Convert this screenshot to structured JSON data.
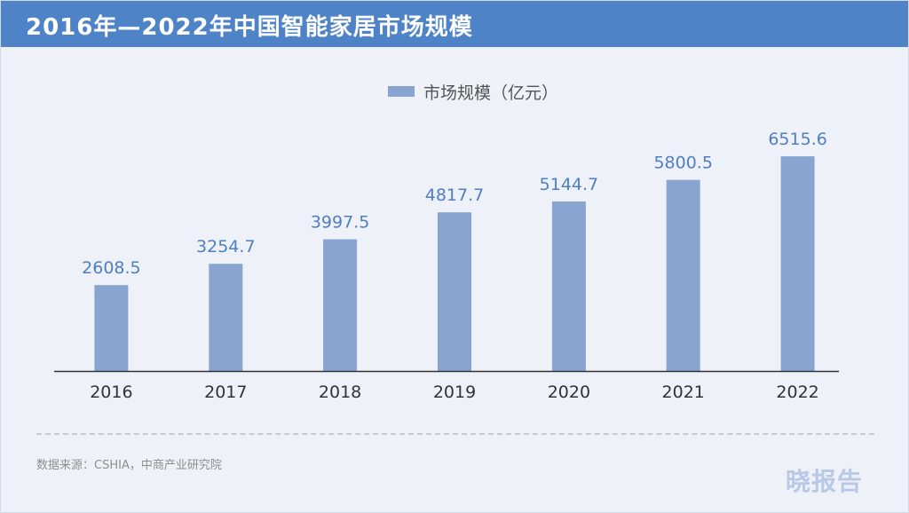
{
  "header": {
    "title": "2016年—2022年中国智能家居市场规模"
  },
  "chart_data": {
    "type": "bar",
    "title": "2016年—2022年中国智能家居市场规模",
    "categories": [
      "2016",
      "2017",
      "2018",
      "2019",
      "2020",
      "2021",
      "2022"
    ],
    "series": [
      {
        "name": "市场规模（亿元）",
        "values": [
          2608.5,
          3254.7,
          3997.5,
          4817.7,
          5144.7,
          5800.5,
          6515.6
        ]
      }
    ],
    "data_labels": [
      "2608.5",
      "3254.7",
      "3997.5",
      "4817.7",
      "5144.7",
      "5800.5",
      "6515.6"
    ],
    "xlabel": "",
    "ylabel": "",
    "ylim": [
      0,
      6600
    ],
    "grid": false,
    "legend": "top-center"
  },
  "footer": {
    "source": "数据来源：CSHIA，中商产业研究院",
    "watermark": "晓报告"
  },
  "colors": {
    "header_bg": "#4e83c8",
    "background": "#eef1f8",
    "bar": "#8aa4d2",
    "data_label": "#4e7fc3",
    "axis": "#333333"
  }
}
